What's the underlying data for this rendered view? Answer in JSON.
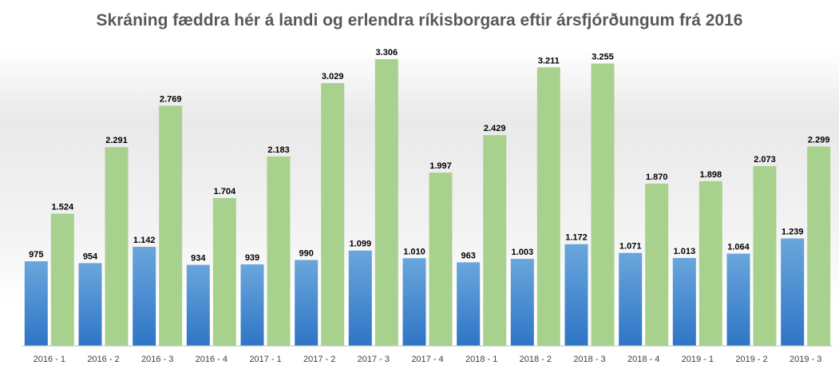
{
  "chart_data": {
    "type": "bar",
    "title": "Skráning fæddra hér á landi og erlendra ríkisborgara eftir ársfjórðungum frá 2016",
    "xlabel": "",
    "ylabel": "",
    "ylim": [
      0,
      3400
    ],
    "grid": false,
    "legend": "none",
    "categories": [
      "2016 - 1",
      "2016 - 2",
      "2016 - 3",
      "2016 - 4",
      "2017 - 1",
      "2017 - 2",
      "2017 - 3",
      "2017 - 4",
      "2018 - 1",
      "2018 - 2",
      "2018 - 3",
      "2018 - 4",
      "2019 - 1",
      "2019 - 2",
      "2019 - 3"
    ],
    "series": [
      {
        "values": [
          975,
          954,
          1142,
          934,
          939,
          990,
          1099,
          1010,
          963,
          1003,
          1172,
          1071,
          1013,
          1064,
          1239
        ],
        "labels": [
          "975",
          "954",
          "1.142",
          "934",
          "939",
          "990",
          "1.099",
          "1.010",
          "963",
          "1.003",
          "1.172",
          "1.071",
          "1.013",
          "1.064",
          "1.239"
        ],
        "color": "#5b9bd5",
        "color_dark": "#2e75c6"
      },
      {
        "values": [
          1524,
          2291,
          2769,
          1704,
          2183,
          3029,
          3306,
          1997,
          2429,
          3211,
          3255,
          1870,
          1898,
          2073,
          2299
        ],
        "labels": [
          "1.524",
          "2.291",
          "2.769",
          "1.704",
          "2.183",
          "3.029",
          "3.306",
          "1.997",
          "2.429",
          "3.211",
          "3.255",
          "1.870",
          "1.898",
          "2.073",
          "2.299"
        ],
        "color": "#a9d18e",
        "color_dark": "#a9d18e"
      }
    ]
  }
}
